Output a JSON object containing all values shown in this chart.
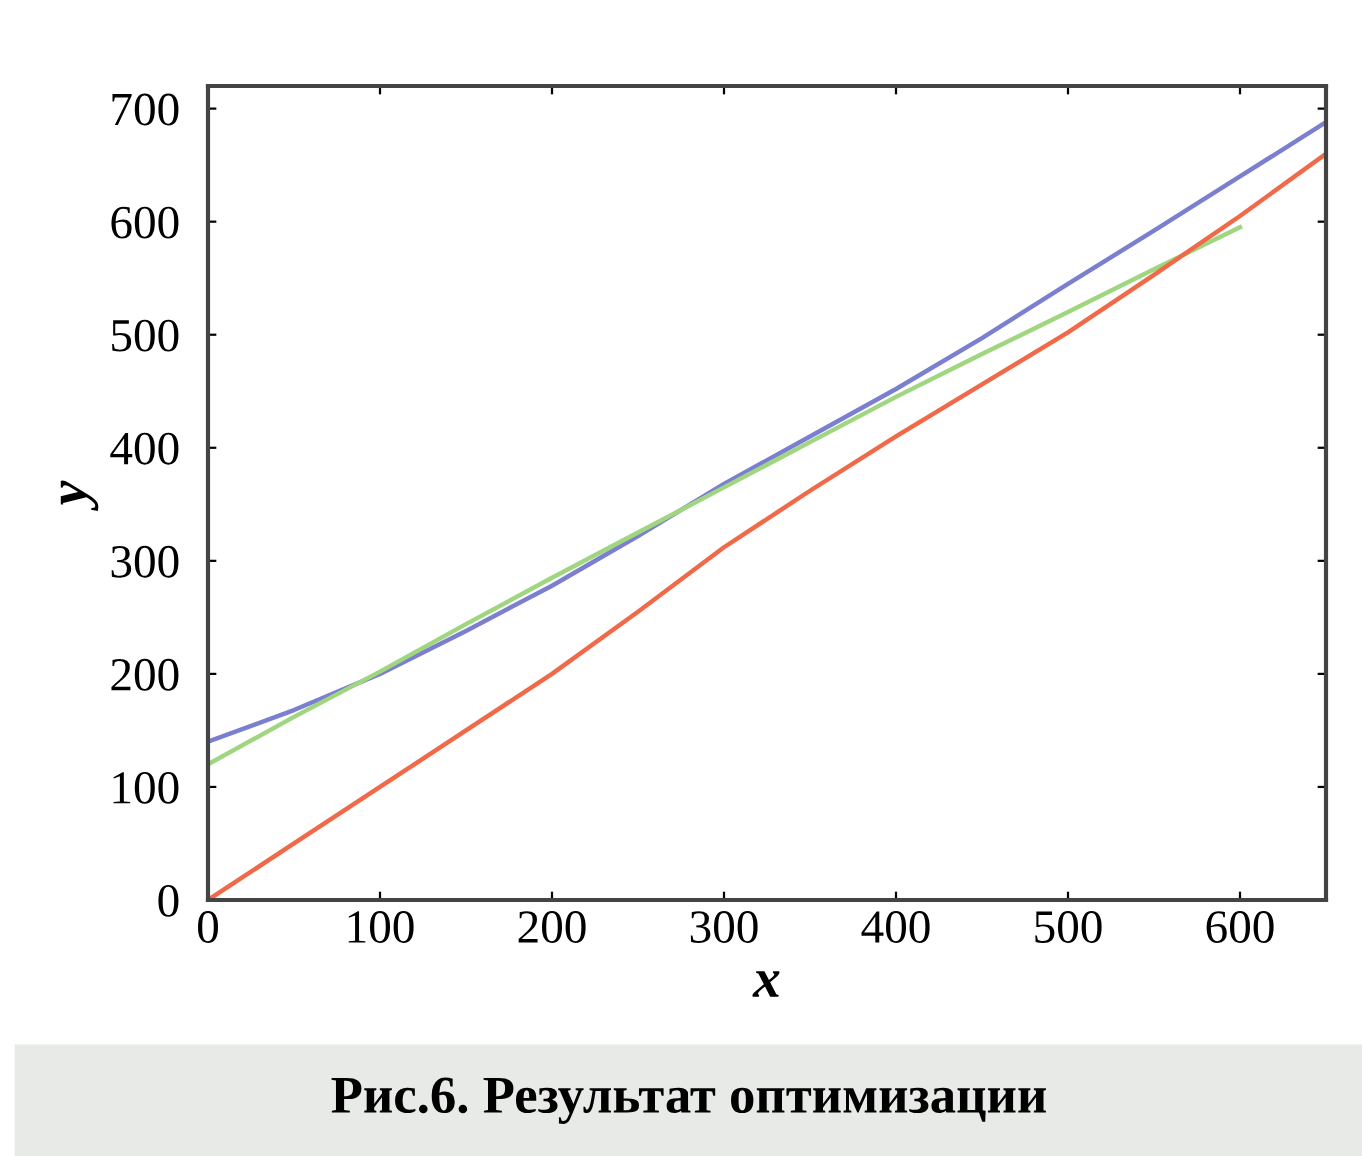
{
  "chart_data": {
    "type": "line",
    "xlabel": "x",
    "ylabel": "y",
    "x": [
      0,
      50,
      100,
      150,
      200,
      250,
      300,
      350,
      400,
      450,
      500,
      550,
      600,
      650
    ],
    "series": [
      {
        "color": "#7b7fd0",
        "values": [
          140,
          168,
          200,
          238,
          278,
          322,
          368,
          410,
          452,
          497,
          545,
          592,
          640,
          688
        ]
      },
      {
        "color": "#9fd67f",
        "values": [
          120,
          162,
          202,
          244,
          285,
          325,
          365,
          405,
          445,
          483,
          520,
          558,
          595,
          null
        ]
      },
      {
        "color": "#f06a4a",
        "values": [
          0,
          50,
          100,
          150,
          200,
          255,
          312,
          362,
          410,
          456,
          502,
          553,
          605,
          660
        ]
      }
    ],
    "xlim": [
      0,
      650
    ],
    "ylim": [
      0,
      720
    ],
    "xticks": [
      0,
      100,
      200,
      300,
      400,
      500,
      600
    ],
    "yticks": [
      0,
      100,
      200,
      300,
      400,
      500,
      600,
      700
    ],
    "grid": false,
    "legend": false,
    "marker": "none",
    "line_style": "solid",
    "annotations": [
      "Рис.6. Результат оптимизации"
    ]
  }
}
